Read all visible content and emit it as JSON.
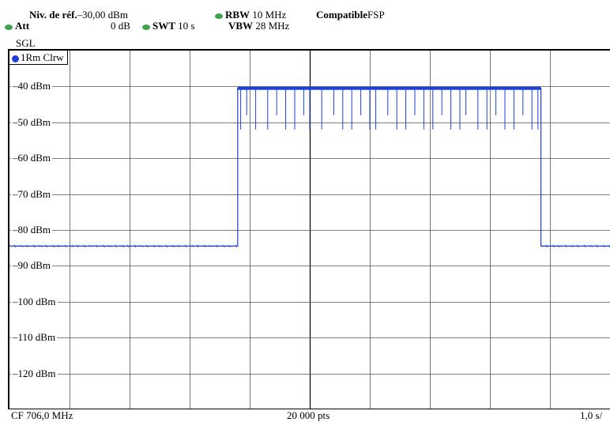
{
  "header": {
    "ref_level_label": "Niv. de réf.",
    "ref_level_value": "–30,00 dBm",
    "att_label": "Att",
    "att_value": "0 dB",
    "swt_label": "SWT",
    "swt_value": "10 s",
    "rbw_label": "RBW",
    "rbw_value": "10 MHz",
    "vbw_label": "VBW",
    "vbw_value": "28 MHz",
    "compat_label": "Compatible",
    "compat_value": "FSP",
    "sweep_mode": "SGL"
  },
  "trace": {
    "label": "1Rm Clrw",
    "color": "#1f3fd6"
  },
  "indicator_color": "#3fa34d",
  "footer": {
    "center_freq": "CF 706,0 MHz",
    "points": "20 000 pts",
    "time_per_div": "1,0 s/"
  },
  "chart_data": {
    "type": "line",
    "ylabels": [
      "-40 dBm",
      "-50 dBm",
      "-60 dBm",
      "-70 dBm",
      "-80 dBm",
      "-90 dBm",
      "-100 dBm",
      "-110 dBm",
      "-120 dBm"
    ],
    "ylabels_display": [
      "–40 dBm",
      "–50 dBm",
      "–60 dBm",
      "–70 dBm",
      "–80 dBm",
      "–90 dBm",
      "–100 dBm",
      "–110 dBm",
      "–120 dBm"
    ],
    "ylim": [
      -130,
      -30
    ],
    "xlim": [
      0,
      10
    ],
    "xunit": "s",
    "grid": true,
    "series": [
      {
        "segments": [
          {
            "x": [
              0,
              3.8
            ],
            "y": -84.5
          },
          {
            "x": [
              3.8,
              8.85
            ],
            "y": -40.5
          },
          {
            "x": [
              8.85,
              10
            ],
            "y": -84.5
          }
        ],
        "dips_x": [
          3.85,
          3.95,
          4.1,
          4.3,
          4.45,
          4.6,
          4.75,
          4.9,
          5.0,
          5.2,
          5.4,
          5.55,
          5.7,
          5.85,
          6.0,
          6.1,
          6.3,
          6.45,
          6.6,
          6.75,
          6.9,
          7.05,
          7.2,
          7.35,
          7.5,
          7.6,
          7.8,
          7.95,
          8.1,
          8.25,
          8.4,
          8.55,
          8.7,
          8.8
        ],
        "dip_min": -52
      }
    ]
  }
}
